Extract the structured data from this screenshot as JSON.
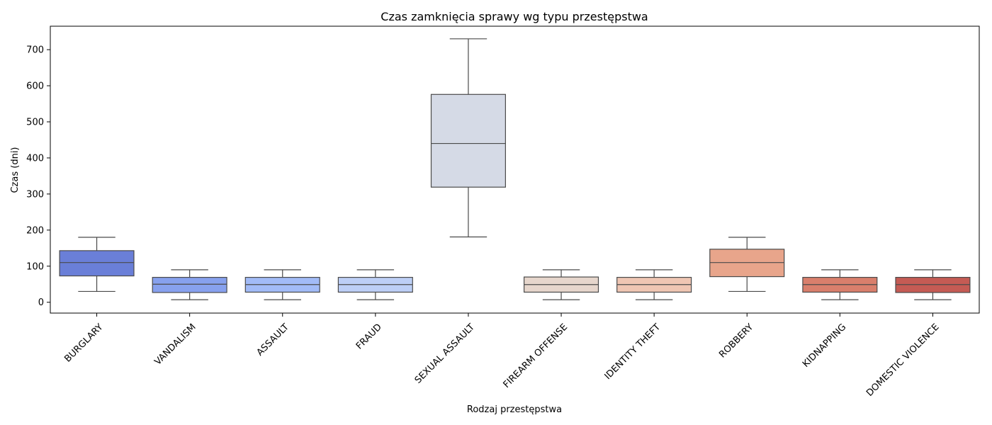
{
  "chart_data": {
    "type": "box",
    "title": "Czas zamknięcia sprawy wg typu przestępstwa",
    "xlabel": "Rodzaj przestępstwa",
    "ylabel": "Czas (dni)",
    "ylim": [
      -30,
      765
    ],
    "yticks": [
      0,
      100,
      200,
      300,
      400,
      500,
      600,
      700
    ],
    "grid": false,
    "categories": [
      "BURGLARY",
      "VANDALISM",
      "ASSAULT",
      "FRAUD",
      "SEXUAL ASSAULT",
      "FIREARM OFFENSE",
      "IDENTITY THEFT",
      "ROBBERY",
      "KIDNAPPING",
      "DOMESTIC VIOLENCE"
    ],
    "boxes": [
      {
        "whisker_low": 30,
        "q1": 73,
        "median": 110,
        "q3": 143,
        "whisker_high": 180,
        "color": "#6a7fd8"
      },
      {
        "whisker_low": 7,
        "q1": 27,
        "median": 50,
        "q3": 69,
        "whisker_high": 90,
        "color": "#87a1ee"
      },
      {
        "whisker_low": 7,
        "q1": 28,
        "median": 49,
        "q3": 69,
        "whisker_high": 90,
        "color": "#a2bbf7"
      },
      {
        "whisker_low": 7,
        "q1": 28,
        "median": 49,
        "q3": 69,
        "whisker_high": 90,
        "color": "#bdcff6"
      },
      {
        "whisker_low": 181,
        "q1": 319,
        "median": 440,
        "q3": 576,
        "whisker_high": 730,
        "color": "#d5dae6"
      },
      {
        "whisker_low": 7,
        "q1": 28,
        "median": 49,
        "q3": 70,
        "whisker_high": 90,
        "color": "#e6d6cc"
      },
      {
        "whisker_low": 7,
        "q1": 28,
        "median": 49,
        "q3": 69,
        "whisker_high": 90,
        "color": "#efc6b3"
      },
      {
        "whisker_low": 30,
        "q1": 71,
        "median": 110,
        "q3": 147,
        "whisker_high": 180,
        "color": "#e8a58b"
      },
      {
        "whisker_low": 7,
        "q1": 28,
        "median": 49,
        "q3": 69,
        "whisker_high": 90,
        "color": "#d97f6c"
      },
      {
        "whisker_low": 7,
        "q1": 27,
        "median": 49,
        "q3": 69,
        "whisker_high": 90,
        "color": "#c55b54"
      }
    ]
  }
}
